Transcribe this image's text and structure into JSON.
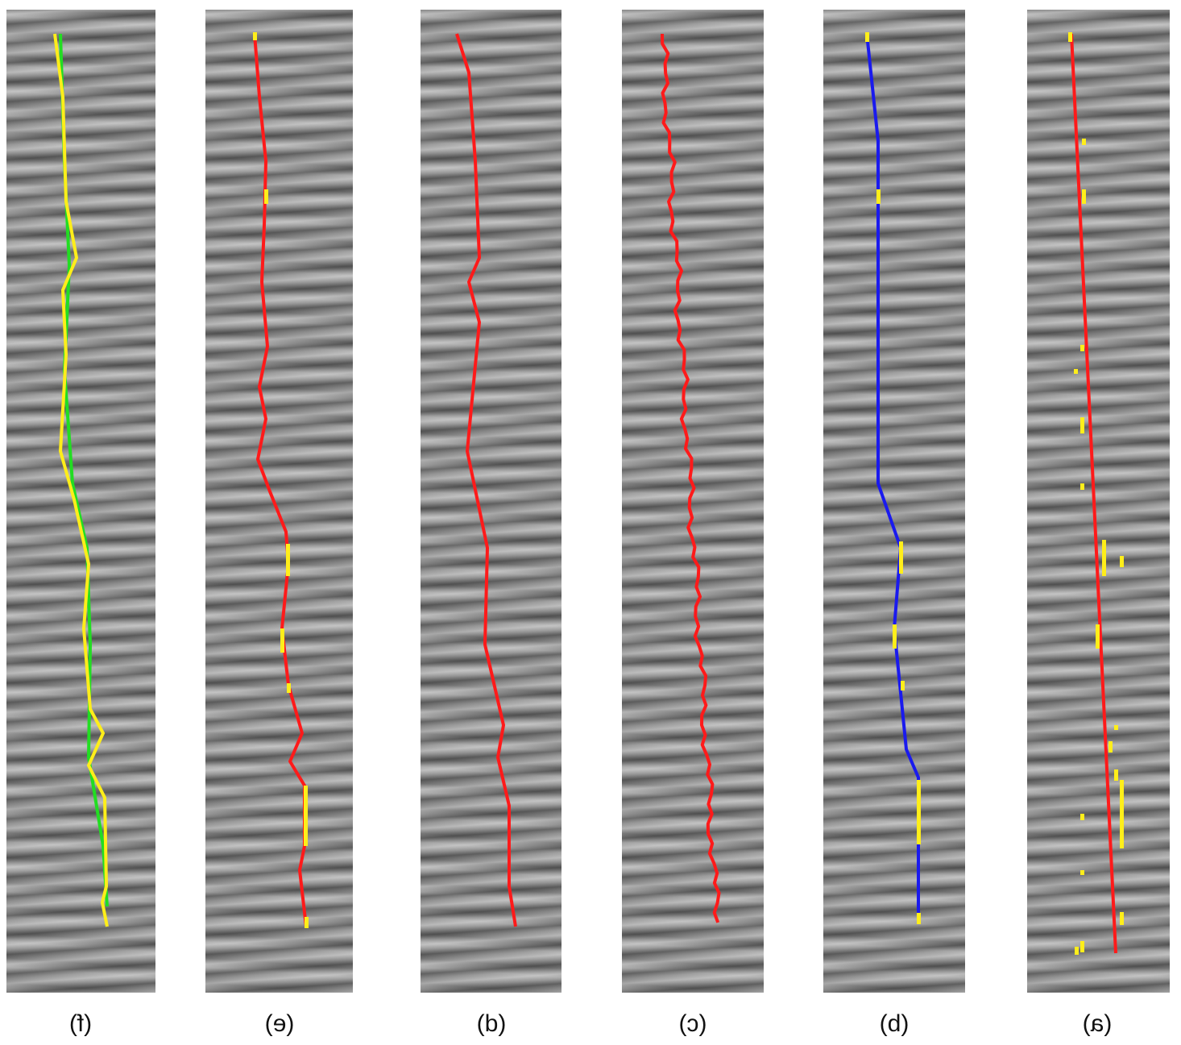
{
  "panels": [
    {
      "label": "(f)"
    },
    {
      "label": "(e)"
    },
    {
      "label": "(d)"
    },
    {
      "label": "(c)"
    },
    {
      "label": "(b)"
    },
    {
      "label": "(a)"
    }
  ],
  "colors": {
    "red": "#ff1a1a",
    "yellow": "#ffee1a",
    "green": "#22dd22",
    "blue": "#1a1aee"
  }
}
